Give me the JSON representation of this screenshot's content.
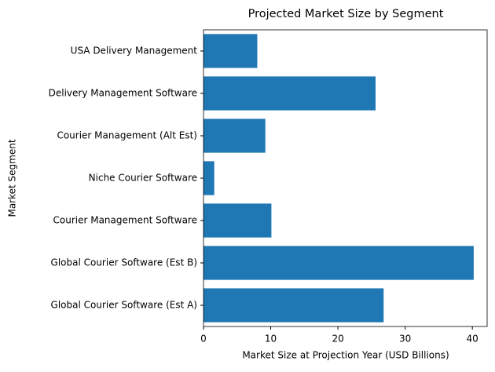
{
  "chart_data": {
    "type": "barh",
    "title": "Projected Market Size by Segment",
    "x_label": "Market Size at Projection Year (USD Billions)",
    "y_label": "Market Segment",
    "categories": [
      "Global Courier Software (Est A)",
      "Global Courier Software (Est B)",
      "Courier Management Software",
      "Niche Courier Software",
      "Courier Management (Alt Est)",
      "Delivery Management Software",
      "USA Delivery Management"
    ],
    "values": [
      26.8,
      40.2,
      10.1,
      1.6,
      9.2,
      25.6,
      8.0
    ],
    "color": "#1f77b4",
    "xlim": [
      0,
      42.2
    ],
    "xticks": [
      0,
      10,
      20,
      30,
      40
    ],
    "grid": false
  }
}
